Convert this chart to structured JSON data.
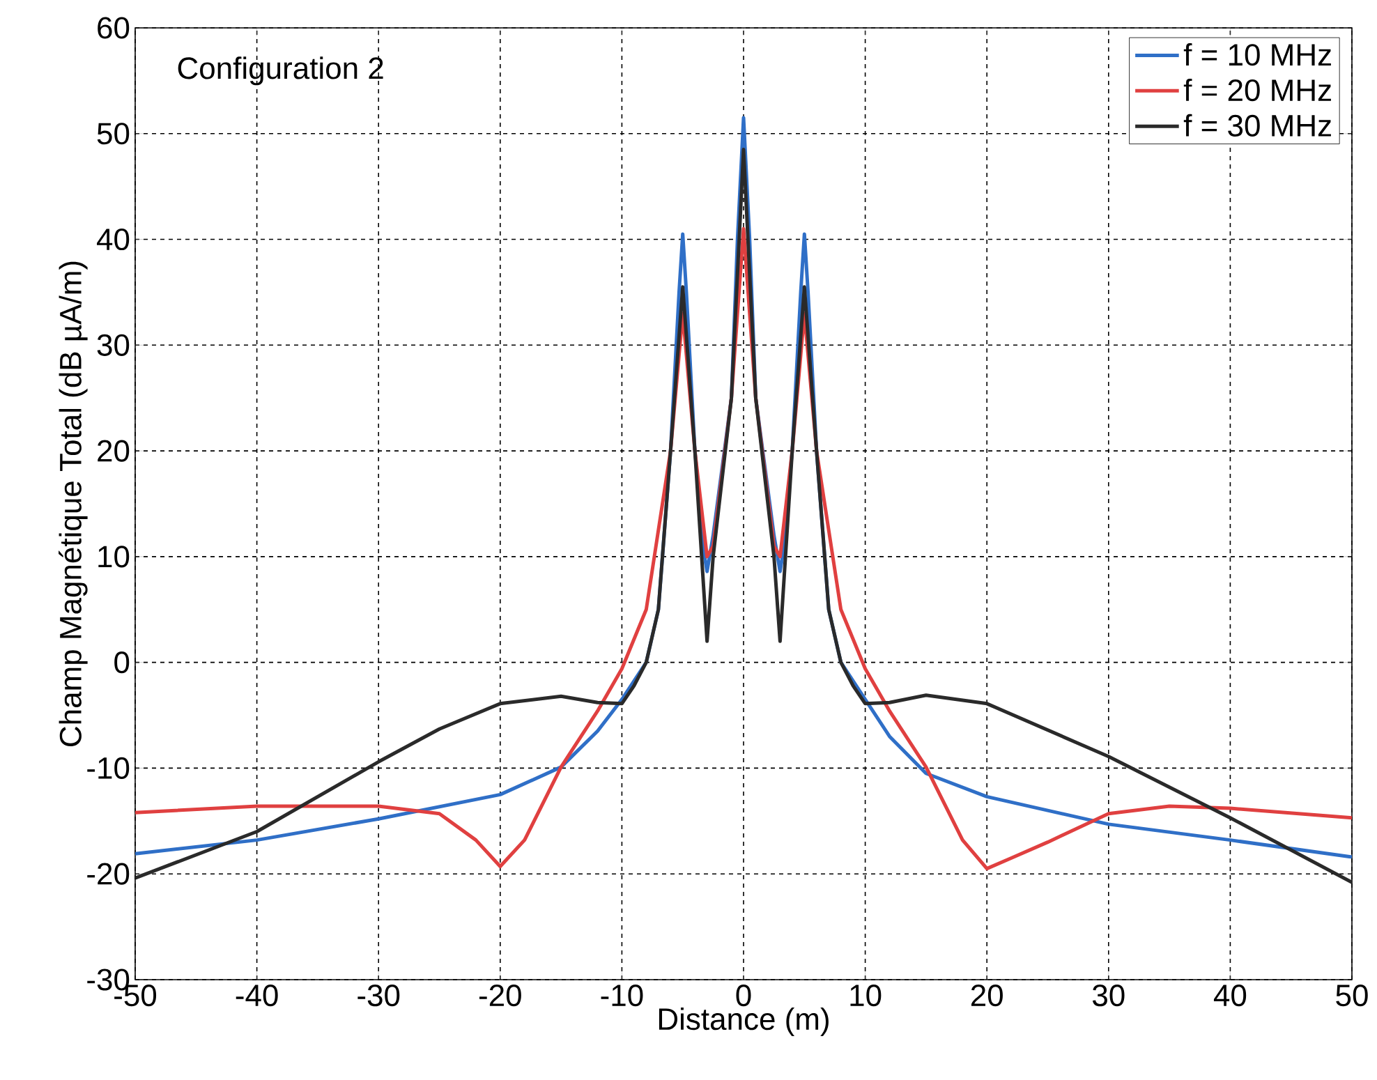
{
  "chart_data": {
    "type": "line",
    "xlabel": "Distance (m)",
    "ylabel": "Champ Magnétique Total (dB µA/m)",
    "annotations": [
      "Configuration 2"
    ],
    "xlim": [
      -50,
      50
    ],
    "ylim": [
      -30,
      60
    ],
    "xticks": [
      -50,
      -40,
      -30,
      -20,
      -10,
      0,
      10,
      20,
      30,
      40,
      50
    ],
    "yticks": [
      -30,
      -20,
      -10,
      0,
      10,
      20,
      30,
      40,
      50,
      60
    ],
    "grid": true,
    "legend": "top right",
    "line_style": "solid",
    "marker": "none",
    "series": [
      {
        "name": "f = 10 MHz",
        "color": "#2f6fc7",
        "x": [
          -50,
          -40,
          -30,
          -20,
          -15,
          -12,
          -10,
          -8,
          -7,
          -6,
          -5.3,
          -5,
          -4.7,
          -4,
          -3.2,
          -3,
          -2.5,
          -1,
          -0.5,
          0,
          0.5,
          1,
          2.5,
          3,
          3.2,
          4,
          4.7,
          5,
          5.3,
          6,
          7,
          8,
          10,
          12,
          15,
          20,
          30,
          40,
          50
        ],
        "values": [
          -18.1,
          -16.8,
          -14.8,
          -12.5,
          -9.9,
          -6.5,
          -3.5,
          0,
          5,
          20,
          35,
          40.5,
          35,
          20,
          10,
          8.6,
          12,
          25,
          40,
          51.5,
          40,
          25,
          12,
          8.6,
          10,
          20,
          35,
          40.5,
          35,
          20,
          5,
          0,
          -3.5,
          -7,
          -10.5,
          -12.7,
          -15.3,
          -16.8,
          -18.4
        ]
      },
      {
        "name": "f = 20 MHz",
        "color": "#e04040",
        "x": [
          -50,
          -40,
          -30,
          -25,
          -22,
          -20,
          -18,
          -15,
          -12,
          -10,
          -8,
          -6,
          -5,
          -4,
          -3,
          -2.5,
          -1,
          0,
          1,
          2.5,
          3,
          4,
          5,
          6,
          8,
          10,
          12,
          15,
          18,
          20,
          22,
          25,
          30,
          35,
          40,
          50
        ],
        "values": [
          -14.2,
          -13.6,
          -13.6,
          -14.3,
          -16.8,
          -19.3,
          -16.8,
          -9.9,
          -4.6,
          -0.6,
          5,
          20,
          33,
          20,
          10,
          11,
          25,
          41,
          25,
          11,
          10,
          20,
          33,
          20,
          5,
          -0.6,
          -4.6,
          -9.9,
          -16.8,
          -19.5,
          -18.5,
          -17,
          -14.3,
          -13.6,
          -13.8,
          -14.7
        ]
      },
      {
        "name": "f = 30 MHz",
        "color": "#2a2a2a",
        "x": [
          -50,
          -40,
          -30,
          -25,
          -20,
          -15,
          -12,
          -10,
          -9,
          -8,
          -7,
          -6,
          -5,
          -4,
          -3,
          -2.5,
          -1,
          0,
          1,
          2.5,
          3,
          4,
          5,
          6,
          7,
          8,
          9,
          10,
          12,
          15,
          20,
          30,
          40,
          50
        ],
        "values": [
          -20.4,
          -16,
          -9.4,
          -6.3,
          -3.9,
          -3.2,
          -3.8,
          -3.9,
          -2.2,
          0,
          5,
          20,
          35.5,
          20,
          2,
          10,
          25,
          48.5,
          25,
          10,
          2,
          20,
          35.5,
          20,
          5,
          0,
          -2.2,
          -3.9,
          -3.8,
          -3.1,
          -3.9,
          -8.9,
          -14.7,
          -20.8
        ]
      }
    ]
  }
}
